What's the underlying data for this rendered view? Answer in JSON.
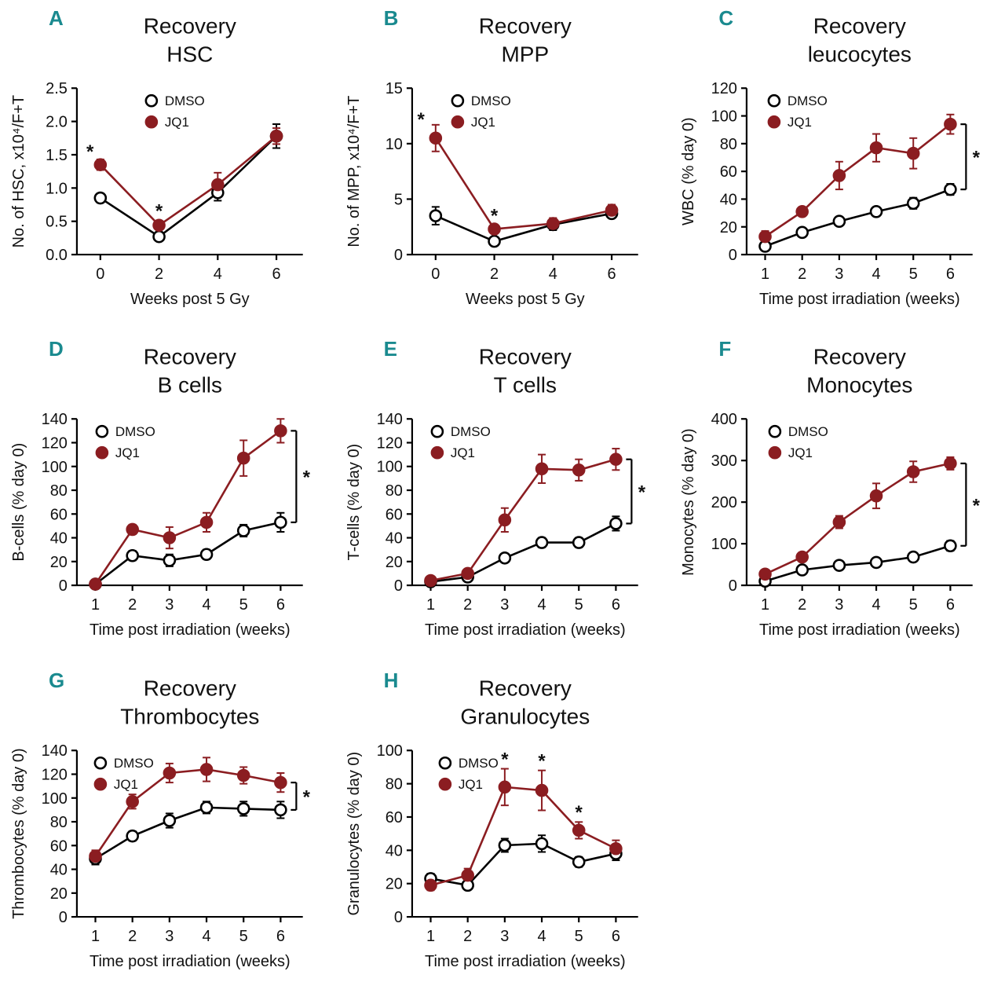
{
  "figure": {
    "background": "#ffffff",
    "panel_letter_color": "#1a8a8f",
    "dmso_color": "#000000",
    "jq1_color": "#8b1d21",
    "legend_entries": [
      "DMSO",
      "JQ1"
    ]
  },
  "chart_data": [
    {
      "type": "line",
      "panel": "A",
      "title": [
        "Recovery",
        "HSC"
      ],
      "xlabel": "Weeks post 5 Gy",
      "ylabel": "No. of HSC, x10⁴/F+T",
      "x": [
        0,
        2,
        4,
        6
      ],
      "xticks": [
        0,
        2,
        4,
        6
      ],
      "xlim": [
        -0.8,
        6.9
      ],
      "ylim": [
        0,
        2.5
      ],
      "yticks": [
        0,
        0.5,
        1,
        1.5,
        2,
        2.5
      ],
      "ytick_decimals": 1,
      "grid": false,
      "legend_position": "top-left",
      "legend_dx": 95,
      "series": [
        {
          "name": "DMSO",
          "values": [
            0.85,
            0.27,
            0.93,
            1.78
          ],
          "errors": [
            0.07,
            0.05,
            0.12,
            0.18
          ]
        },
        {
          "name": "JQ1",
          "values": [
            1.35,
            0.44,
            1.05,
            1.78
          ],
          "errors": [
            0.08,
            0.05,
            0.18,
            0.12
          ]
        }
      ],
      "point_stars": [
        {
          "x": -0.35,
          "y": 1.45
        },
        {
          "x": 2,
          "y": 0.56
        }
      ],
      "bracket_star": false
    },
    {
      "type": "line",
      "panel": "B",
      "title": [
        "Recovery",
        "MPP"
      ],
      "xlabel": "Weeks post 5 Gy",
      "ylabel": "No. of MPP, x10⁴/F+T",
      "x": [
        0,
        2,
        4,
        6
      ],
      "xticks": [
        0,
        2,
        4,
        6
      ],
      "xlim": [
        -0.8,
        6.9
      ],
      "ylim": [
        0,
        15
      ],
      "yticks": [
        0,
        5,
        10,
        15
      ],
      "ytick_decimals": 0,
      "grid": false,
      "legend_position": "top-left",
      "legend_dx": 58,
      "series": [
        {
          "name": "DMSO",
          "values": [
            3.5,
            1.2,
            2.7,
            3.7
          ],
          "errors": [
            0.8,
            0.3,
            0.5,
            0.4
          ]
        },
        {
          "name": "JQ1",
          "values": [
            10.5,
            2.3,
            2.8,
            4.0
          ],
          "errors": [
            1.2,
            0.4,
            0.5,
            0.5
          ]
        }
      ],
      "point_stars": [
        {
          "x": -0.5,
          "y": 11.6
        },
        {
          "x": 2,
          "y": 2.95
        }
      ],
      "bracket_star": false
    },
    {
      "type": "line",
      "panel": "C",
      "title": [
        "Recovery",
        "leucocytes"
      ],
      "xlabel": "Time post irradiation (weeks)",
      "ylabel": "WBC (% day 0)",
      "x": [
        1,
        2,
        3,
        4,
        5,
        6
      ],
      "xticks": [
        1,
        2,
        3,
        4,
        5,
        6
      ],
      "xlim": [
        0.5,
        6.6
      ],
      "ylim": [
        0,
        120
      ],
      "yticks": [
        0,
        20,
        40,
        60,
        80,
        100,
        120
      ],
      "ytick_decimals": 0,
      "grid": false,
      "legend_position": "top-left",
      "legend_dx": 35,
      "series": [
        {
          "name": "DMSO",
          "values": [
            6,
            16,
            24,
            31,
            37,
            47
          ],
          "errors": [
            2,
            3,
            3,
            3,
            4,
            4
          ]
        },
        {
          "name": "JQ1",
          "values": [
            13,
            31,
            57,
            77,
            73,
            94
          ],
          "errors": [
            4,
            3,
            10,
            10,
            11,
            7
          ]
        }
      ],
      "point_stars": [],
      "bracket_star": true
    },
    {
      "type": "line",
      "panel": "D",
      "title": [
        "Recovery",
        "B cells"
      ],
      "xlabel": "Time post irradiation (weeks)",
      "ylabel": "B-cells (% day 0)",
      "x": [
        1,
        2,
        3,
        4,
        5,
        6
      ],
      "xticks": [
        1,
        2,
        3,
        4,
        5,
        6
      ],
      "xlim": [
        0.5,
        6.6
      ],
      "ylim": [
        0,
        140
      ],
      "yticks": [
        0,
        20,
        40,
        60,
        80,
        100,
        120,
        140
      ],
      "ytick_decimals": 0,
      "grid": false,
      "legend_position": "top-left",
      "legend_dx": 32,
      "series": [
        {
          "name": "DMSO",
          "values": [
            1,
            25,
            21,
            26,
            46,
            53
          ],
          "errors": [
            1,
            4,
            5,
            4,
            5,
            8
          ]
        },
        {
          "name": "JQ1",
          "values": [
            1,
            47,
            40,
            53,
            107,
            130
          ],
          "errors": [
            1,
            4,
            9,
            8,
            15,
            10
          ]
        }
      ],
      "point_stars": [],
      "bracket_star": true
    },
    {
      "type": "line",
      "panel": "E",
      "title": [
        "Recovery",
        "T cells"
      ],
      "xlabel": "Time post irradiation (weeks)",
      "ylabel": "T-cells (% day 0)",
      "x": [
        1,
        2,
        3,
        4,
        5,
        6
      ],
      "xticks": [
        1,
        2,
        3,
        4,
        5,
        6
      ],
      "xlim": [
        0.5,
        6.6
      ],
      "ylim": [
        0,
        140
      ],
      "yticks": [
        0,
        20,
        40,
        60,
        80,
        100,
        120,
        140
      ],
      "ytick_decimals": 0,
      "grid": false,
      "legend_position": "top-left",
      "legend_dx": 32,
      "series": [
        {
          "name": "DMSO",
          "values": [
            3,
            7,
            23,
            36,
            36,
            52
          ],
          "errors": [
            1,
            2,
            3,
            4,
            4,
            6
          ]
        },
        {
          "name": "JQ1",
          "values": [
            4,
            10,
            55,
            98,
            97,
            106
          ],
          "errors": [
            1,
            3,
            10,
            12,
            9,
            9
          ]
        }
      ],
      "point_stars": [],
      "bracket_star": true
    },
    {
      "type": "line",
      "panel": "F",
      "title": [
        "Recovery",
        "Monocytes"
      ],
      "xlabel": "Time post irradiation (weeks)",
      "ylabel": "Monocytes (% day 0)",
      "x": [
        1,
        2,
        3,
        4,
        5,
        6
      ],
      "xticks": [
        1,
        2,
        3,
        4,
        5,
        6
      ],
      "xlim": [
        0.5,
        6.6
      ],
      "ylim": [
        0,
        400
      ],
      "yticks": [
        0,
        100,
        200,
        300,
        400
      ],
      "ytick_decimals": 0,
      "grid": false,
      "legend_position": "top-left",
      "legend_dx": 36,
      "series": [
        {
          "name": "DMSO",
          "values": [
            10,
            37,
            48,
            55,
            68,
            95
          ],
          "errors": [
            5,
            8,
            8,
            8,
            10,
            12
          ]
        },
        {
          "name": "JQ1",
          "values": [
            27,
            68,
            152,
            215,
            273,
            293
          ],
          "errors": [
            8,
            10,
            15,
            30,
            25,
            15
          ]
        }
      ],
      "point_stars": [],
      "bracket_star": true
    },
    {
      "type": "line",
      "panel": "G",
      "title": [
        "Recovery",
        "Thrombocytes"
      ],
      "xlabel": "Time post irradiation (weeks)",
      "ylabel": "Thrombocytes (% day 0)",
      "x": [
        1,
        2,
        3,
        4,
        5,
        6
      ],
      "xticks": [
        1,
        2,
        3,
        4,
        5,
        6
      ],
      "xlim": [
        0.5,
        6.6
      ],
      "ylim": [
        0,
        140
      ],
      "yticks": [
        0,
        20,
        40,
        60,
        80,
        100,
        120,
        140
      ],
      "ytick_decimals": 0,
      "grid": false,
      "legend_position": "top-left",
      "legend_dx": 30,
      "series": [
        {
          "name": "DMSO",
          "values": [
            49,
            68,
            81,
            92,
            91,
            90
          ],
          "errors": [
            5,
            4,
            6,
            5,
            6,
            7
          ]
        },
        {
          "name": "JQ1",
          "values": [
            51,
            97,
            121,
            124,
            119,
            113
          ],
          "errors": [
            5,
            6,
            8,
            10,
            7,
            8
          ]
        }
      ],
      "point_stars": [],
      "bracket_star": true
    },
    {
      "type": "line",
      "panel": "H",
      "title": [
        "Recovery",
        "Granulocytes"
      ],
      "xlabel": "Time post irradiation (weeks)",
      "ylabel": "Granulocytes (% day 0)",
      "x": [
        1,
        2,
        3,
        4,
        5,
        6
      ],
      "xticks": [
        1,
        2,
        3,
        4,
        5,
        6
      ],
      "xlim": [
        0.5,
        6.6
      ],
      "ylim": [
        0,
        100
      ],
      "yticks": [
        0,
        20,
        40,
        60,
        80,
        100
      ],
      "ytick_decimals": 0,
      "grid": false,
      "legend_position": "top-left",
      "legend_dx": 42,
      "series": [
        {
          "name": "DMSO",
          "values": [
            23,
            19,
            43,
            44,
            33,
            38
          ],
          "errors": [
            3,
            2,
            4,
            5,
            3,
            4
          ]
        },
        {
          "name": "JQ1",
          "values": [
            19,
            25,
            78,
            76,
            52,
            41
          ],
          "errors": [
            3,
            4,
            11,
            12,
            5,
            5
          ]
        }
      ],
      "point_stars": [
        {
          "x": 3,
          "y": 91
        },
        {
          "x": 4,
          "y": 90
        },
        {
          "x": 5,
          "y": 59
        }
      ],
      "bracket_star": false
    }
  ]
}
